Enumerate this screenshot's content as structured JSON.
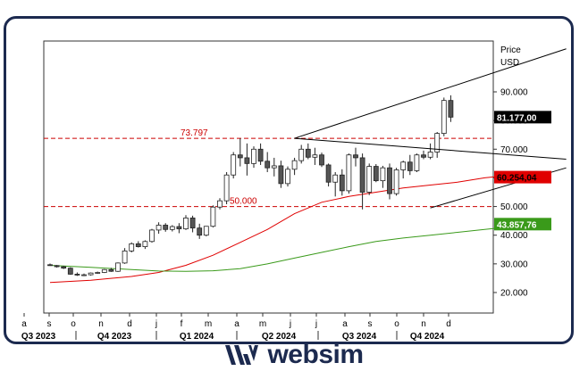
{
  "chart_data": {
    "type": "candlestick",
    "title": "",
    "y_axis": {
      "label": "Price",
      "unit": "USD",
      "min": 15000,
      "max": 110000,
      "ticks": [
        20000,
        30000,
        40000,
        50000,
        60000,
        70000,
        80000,
        90000
      ],
      "tick_labels": [
        "20.000",
        "30.000",
        "40.000",
        "50.000",
        "60.000",
        "70.000",
        "80.000",
        "90.000"
      ]
    },
    "x_axis": {
      "months": [
        "a",
        "s",
        "o",
        "n",
        "d",
        "j",
        "f",
        "m",
        "a",
        "m",
        "j",
        "j",
        "a",
        "s",
        "o",
        "n",
        "d"
      ],
      "quarters": [
        "Q3 2023",
        "Q4 2023",
        "Q1 2024",
        "Q2 2024",
        "Q3 2024",
        "Q4 2024"
      ]
    },
    "price_labels": [
      {
        "text": "81.177,00",
        "value": 81177,
        "color": "#000000"
      },
      {
        "text": "60.254,04",
        "value": 60254,
        "color": "#e00000"
      },
      {
        "text": "43.857,76",
        "value": 43858,
        "color": "#3a9a1a"
      }
    ],
    "levels": [
      {
        "label": "73.797",
        "value": 73797,
        "color": "#cc0000"
      },
      {
        "label": "50.000",
        "value": 50000,
        "color": "#cc0000"
      }
    ],
    "trendlines": [
      {
        "from": [
          36,
          73797
        ],
        "to": [
          76,
          105000
        ]
      },
      {
        "from": [
          36,
          73797
        ],
        "to": [
          76,
          66500
        ]
      },
      {
        "from": [
          56,
          49500
        ],
        "to": [
          76,
          63500
        ]
      }
    ],
    "series": [
      {
        "name": "",
        "color": "#e00000",
        "values": [
          [
            0,
            23500
          ],
          [
            6,
            24300
          ],
          [
            12,
            25600
          ],
          [
            16,
            27000
          ],
          [
            20,
            29500
          ],
          [
            24,
            33000
          ],
          [
            28,
            37500
          ],
          [
            32,
            42000
          ],
          [
            36,
            47500
          ],
          [
            40,
            51500
          ],
          [
            44,
            53500
          ],
          [
            48,
            55000
          ],
          [
            52,
            56500
          ],
          [
            56,
            57500
          ],
          [
            60,
            58500
          ],
          [
            64,
            60000
          ],
          [
            68,
            61000
          ],
          [
            72,
            60254
          ]
        ]
      },
      {
        "name": "",
        "color": "#3a9a1a",
        "values": [
          [
            0,
            29500
          ],
          [
            6,
            28800
          ],
          [
            12,
            28000
          ],
          [
            16,
            27500
          ],
          [
            20,
            27400
          ],
          [
            24,
            27600
          ],
          [
            28,
            28300
          ],
          [
            32,
            30000
          ],
          [
            36,
            32000
          ],
          [
            40,
            34000
          ],
          [
            44,
            36000
          ],
          [
            48,
            37800
          ],
          [
            52,
            39000
          ],
          [
            56,
            40000
          ],
          [
            60,
            41000
          ],
          [
            64,
            42000
          ],
          [
            68,
            43000
          ],
          [
            72,
            43858
          ]
        ]
      }
    ],
    "candles": [
      [
        29700,
        30100,
        29300,
        29400
      ],
      [
        29400,
        29600,
        28700,
        29000
      ],
      [
        29000,
        29300,
        28200,
        28500
      ],
      [
        28500,
        28800,
        26200,
        26400
      ],
      [
        26400,
        27000,
        25800,
        26100
      ],
      [
        26100,
        26600,
        25700,
        26200
      ],
      [
        26200,
        27000,
        25900,
        26800
      ],
      [
        26800,
        27300,
        26500,
        27000
      ],
      [
        27000,
        28200,
        26800,
        28000
      ],
      [
        28000,
        28600,
        27200,
        27400
      ],
      [
        27400,
        30500,
        27200,
        30300
      ],
      [
        30300,
        35500,
        30000,
        34500
      ],
      [
        34500,
        37500,
        34000,
        37000
      ],
      [
        37000,
        37900,
        35700,
        36000
      ],
      [
        36000,
        38200,
        35200,
        37800
      ],
      [
        37800,
        42200,
        37400,
        41800
      ],
      [
        41800,
        44500,
        40500,
        43500
      ],
      [
        43500,
        44200,
        41200,
        42000
      ],
      [
        42000,
        43500,
        41300,
        43000
      ],
      [
        43000,
        44200,
        40700,
        42200
      ],
      [
        42200,
        47000,
        41800,
        46000
      ],
      [
        46000,
        46800,
        41000,
        42500
      ],
      [
        42500,
        44000,
        38700,
        40000
      ],
      [
        40000,
        43200,
        39600,
        43100
      ],
      [
        43100,
        50400,
        42700,
        49800
      ],
      [
        49800,
        52900,
        49000,
        52000
      ],
      [
        52000,
        62000,
        50800,
        61000
      ],
      [
        61000,
        69000,
        59800,
        68000
      ],
      [
        68000,
        73797,
        64000,
        67000
      ],
      [
        67000,
        72000,
        60800,
        65000
      ],
      [
        65000,
        71000,
        63500,
        70000
      ],
      [
        70000,
        72000,
        64500,
        65800
      ],
      [
        65800,
        69000,
        62000,
        63500
      ],
      [
        63500,
        67000,
        60500,
        64200
      ],
      [
        64200,
        66000,
        56500,
        58000
      ],
      [
        58000,
        64000,
        57000,
        63000
      ],
      [
        63000,
        67000,
        61000,
        66000
      ],
      [
        66000,
        71500,
        65000,
        70000
      ],
      [
        70000,
        72000,
        66500,
        67200
      ],
      [
        67200,
        70500,
        64500,
        68000
      ],
      [
        68000,
        68800,
        63800,
        64500
      ],
      [
        64500,
        65000,
        57000,
        58500
      ],
      [
        58500,
        62000,
        53500,
        61000
      ],
      [
        61000,
        63000,
        53800,
        55500
      ],
      [
        55500,
        68500,
        54500,
        68000
      ],
      [
        68000,
        70500,
        64000,
        67000
      ],
      [
        67000,
        68500,
        49000,
        55000
      ],
      [
        55000,
        65000,
        54000,
        64000
      ],
      [
        64000,
        64800,
        58500,
        59000
      ],
      [
        59000,
        64200,
        56500,
        63500
      ],
      [
        63500,
        65000,
        52500,
        54500
      ],
      [
        54500,
        63500,
        53800,
        62800
      ],
      [
        62800,
        66000,
        59800,
        65500
      ],
      [
        65500,
        68000,
        61000,
        62500
      ],
      [
        62500,
        68500,
        62000,
        68000
      ],
      [
        68000,
        69500,
        66500,
        67200
      ],
      [
        67200,
        72000,
        66500,
        69000
      ],
      [
        69000,
        76000,
        67000,
        75500
      ],
      [
        75500,
        88000,
        74500,
        87000
      ],
      [
        87000,
        88800,
        79500,
        81177
      ]
    ]
  }
}
